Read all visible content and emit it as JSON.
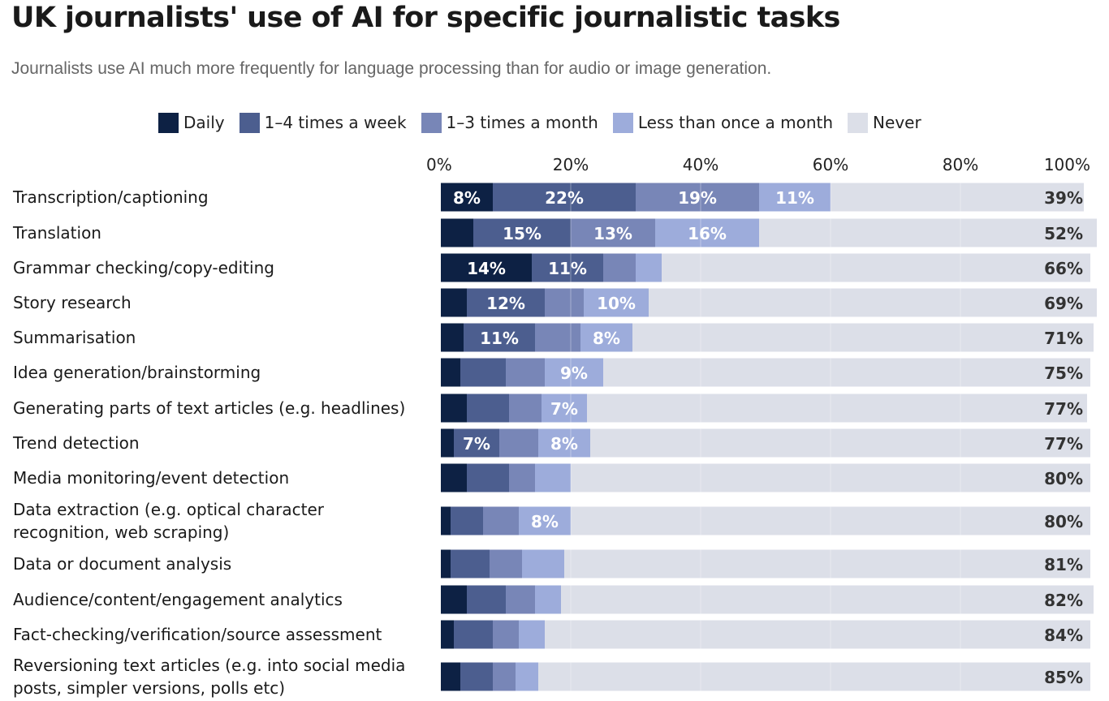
{
  "chart_data": {
    "type": "bar",
    "orientation": "horizontal",
    "stacked": true,
    "title": "UK journalists' use of AI for specific journalistic tasks",
    "subtitle": "Journalists use AI much more frequently for language processing than for audio or image generation.",
    "xlabel": "",
    "ylabel": "",
    "xlim": [
      0,
      100
    ],
    "x_ticks": [
      "0%",
      "20%",
      "40%",
      "60%",
      "80%",
      "100%"
    ],
    "grid": true,
    "legend_position": "top",
    "categories": [
      "Transcription/captioning",
      "Translation",
      "Grammar checking/copy-editing",
      "Story research",
      "Summarisation",
      "Idea generation/brainstorming",
      "Generating parts of text articles (e.g. headlines)",
      "Trend detection",
      "Media monitoring/event detection",
      "Data extraction (e.g. optical character recognition, web scraping)",
      "Data or document analysis",
      "Audience/content/engagement analytics",
      "Fact-checking/verification/source assessment",
      "Reversioning text articles (e.g. into social media posts, simpler versions, polls etc)"
    ],
    "series": [
      {
        "name": "Daily",
        "color": "#0d2144",
        "label_color": "#ffffff",
        "values": [
          8,
          5,
          14,
          4,
          3.5,
          3,
          4,
          2,
          4,
          1.5,
          1.5,
          4,
          2,
          3
        ],
        "labels": [
          "8%",
          "",
          "14%",
          "",
          "",
          "",
          "",
          "",
          "",
          "",
          "",
          "",
          "",
          ""
        ]
      },
      {
        "name": "1–4 times a week",
        "color": "#4c5e8f",
        "label_color": "#ffffff",
        "values": [
          22,
          15,
          11,
          12,
          11,
          7,
          6.5,
          7,
          6.5,
          5,
          6,
          6,
          6,
          5
        ],
        "labels": [
          "22%",
          "15%",
          "11%",
          "12%",
          "11%",
          "",
          "",
          "7%",
          "",
          "",
          "",
          "",
          "",
          ""
        ]
      },
      {
        "name": "1–3 times a month",
        "color": "#7886b7",
        "label_color": "#ffffff",
        "values": [
          19,
          13,
          5,
          6,
          7,
          6,
          5,
          6,
          4,
          5.5,
          5,
          4.5,
          4,
          3.5
        ],
        "labels": [
          "19%",
          "13%",
          "",
          "",
          "",
          "",
          "",
          "",
          "",
          "",
          "",
          "",
          "",
          ""
        ]
      },
      {
        "name": "Less than once a month",
        "color": "#9dacdb",
        "label_color": "#ffffff",
        "values": [
          11,
          16,
          4,
          10,
          8,
          9,
          7,
          8,
          5.5,
          8,
          6.5,
          4,
          4,
          3.5
        ],
        "labels": [
          "11%",
          "16%",
          "",
          "10%",
          "8%",
          "9%",
          "7%",
          "8%",
          "",
          "8%",
          "",
          "",
          "",
          ""
        ]
      },
      {
        "name": "Never",
        "color": "#dcdfe8",
        "label_color": "#333333",
        "values": [
          39,
          52,
          66,
          69,
          71,
          75,
          77,
          77,
          80,
          80,
          81,
          82,
          84,
          85
        ],
        "labels": [
          "39%",
          "52%",
          "66%",
          "69%",
          "71%",
          "75%",
          "77%",
          "77%",
          "80%",
          "80%",
          "81%",
          "82%",
          "84%",
          "85%"
        ]
      }
    ]
  }
}
